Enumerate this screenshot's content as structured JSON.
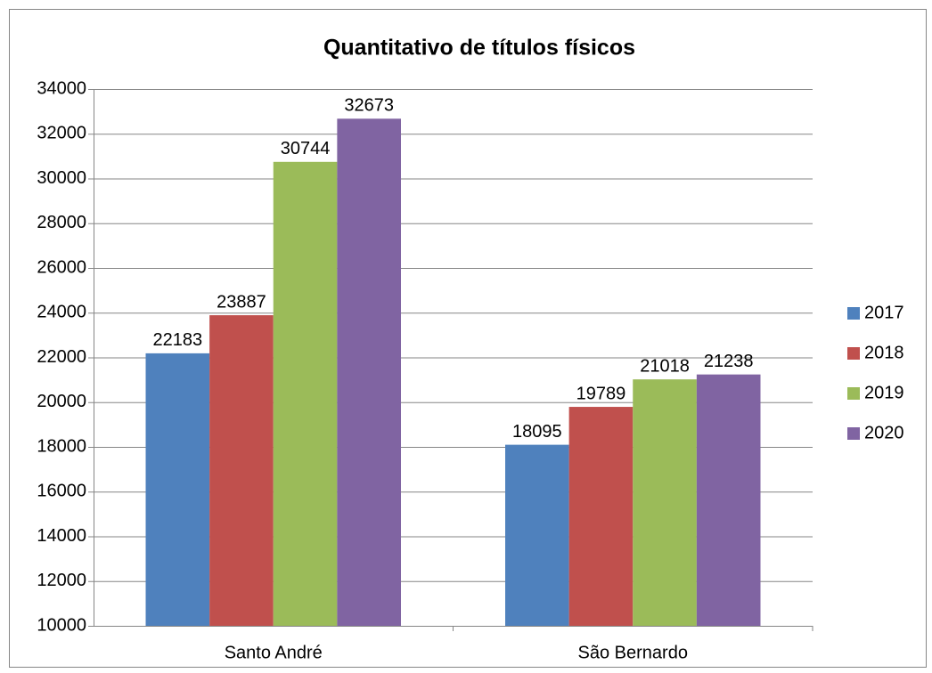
{
  "chart_data": {
    "type": "bar",
    "title": "Quantitativo de títulos físicos",
    "categories": [
      "Santo André",
      "São Bernardo"
    ],
    "series": [
      {
        "name": "2017",
        "color": "#4f81bd",
        "values": [
          22183,
          18095
        ]
      },
      {
        "name": "2018",
        "color": "#c0504d",
        "values": [
          23887,
          19789
        ]
      },
      {
        "name": "2019",
        "color": "#9bbb59",
        "values": [
          30744,
          21018
        ]
      },
      {
        "name": "2020",
        "color": "#8064a2",
        "values": [
          32673,
          21238
        ]
      }
    ],
    "ylim": [
      10000,
      34000
    ],
    "yticks": [
      10000,
      12000,
      14000,
      16000,
      18000,
      20000,
      22000,
      24000,
      26000,
      28000,
      30000,
      32000,
      34000
    ],
    "grid": true,
    "legend": "right"
  }
}
